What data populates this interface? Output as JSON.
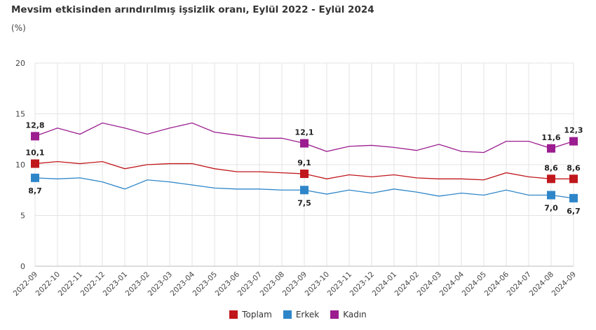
{
  "title": "Mevsim etkisinden arındırılmış işsizlik oranı, Eylül 2022 - Eylül 2024",
  "unit": "(%)",
  "chart_data": {
    "type": "line",
    "title": "Mevsim etkisinden arındırılmış işsizlik oranı, Eylül 2022 - Eylül 2024",
    "ylabel": "(%)",
    "ylim": [
      0,
      20
    ],
    "yticks": [
      0,
      5,
      10,
      15,
      20
    ],
    "grid": true,
    "legend": "bottom",
    "x": [
      "2022-09",
      "2022-10",
      "2022-11",
      "2022-12",
      "2023-01",
      "2023-02",
      "2023-03",
      "2023-04",
      "2023-05",
      "2023-06",
      "2023-07",
      "2023-08",
      "2023-09",
      "2023-10",
      "2023-11",
      "2023-12",
      "2024-01",
      "2024-02",
      "2024-03",
      "2024-04",
      "2024-05",
      "2024-06",
      "2024-07",
      "2024-08",
      "2024-09"
    ],
    "series": [
      {
        "name": "Toplam",
        "color": "#c0171c",
        "label_pos": "above",
        "values": [
          10.1,
          10.3,
          10.1,
          10.3,
          9.6,
          10.0,
          10.1,
          10.1,
          9.6,
          9.3,
          9.3,
          9.2,
          9.1,
          8.6,
          9.0,
          8.8,
          9.0,
          8.7,
          8.6,
          8.6,
          8.5,
          9.2,
          8.8,
          8.6,
          8.6
        ]
      },
      {
        "name": "Erkek",
        "color": "#2e86c9",
        "label_pos": "below",
        "values": [
          8.7,
          8.6,
          8.7,
          8.3,
          7.6,
          8.5,
          8.3,
          8.0,
          7.7,
          7.6,
          7.6,
          7.5,
          7.5,
          7.1,
          7.5,
          7.2,
          7.6,
          7.3,
          6.9,
          7.2,
          7.0,
          7.5,
          7.0,
          7.0,
          6.7
        ]
      },
      {
        "name": "Kadın",
        "color": "#9b1d8f",
        "label_pos": "above",
        "values": [
          12.8,
          13.6,
          13.0,
          14.1,
          13.6,
          13.0,
          13.6,
          14.1,
          13.2,
          12.9,
          12.6,
          12.6,
          12.1,
          11.3,
          11.8,
          11.9,
          11.7,
          11.4,
          12.0,
          11.3,
          11.2,
          12.3,
          12.3,
          11.6,
          12.3
        ]
      }
    ],
    "marked_points": [
      0,
      12,
      23,
      24
    ],
    "data_labels": {
      "Toplam": {
        "0": "10,1",
        "12": "9,1",
        "23": "8,6",
        "24": "8,6"
      },
      "Erkek": {
        "0": "8,7",
        "12": "7,5",
        "23": "7,0",
        "24": "6,7"
      },
      "Kadın": {
        "0": "12,8",
        "12": "12,1",
        "23": "11,6",
        "24": "12,3"
      }
    }
  }
}
